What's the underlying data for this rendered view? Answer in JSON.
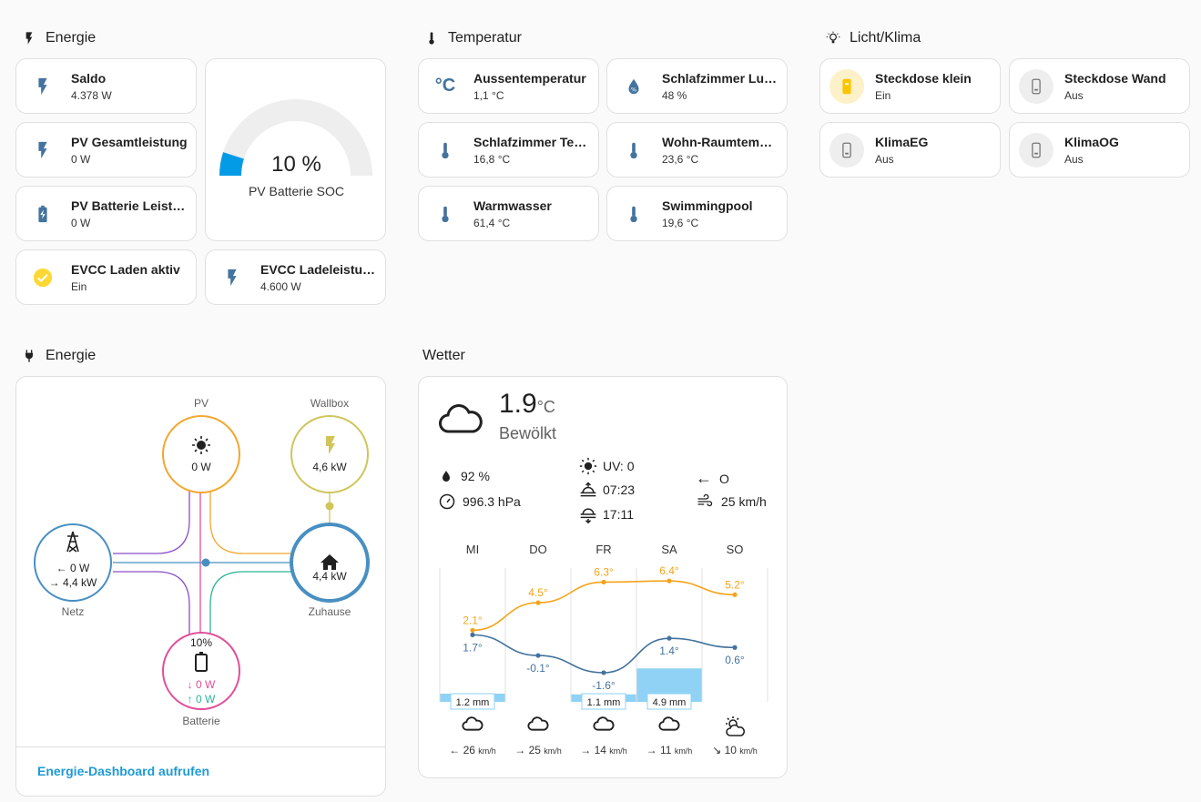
{
  "energy_section": {
    "title": "Energie",
    "tiles": [
      {
        "name": "Saldo",
        "state": "4.378 W"
      },
      {
        "name": "PV Gesamtleistung",
        "state": "0 W"
      },
      {
        "name": "PV Batterie Leistung",
        "state": "0 W"
      },
      {
        "name": "EVCC Laden aktiv",
        "state": "Ein"
      },
      {
        "name": "EVCC Ladeleistung",
        "state": "4.600 W"
      }
    ],
    "gauge": {
      "value": "10 %",
      "label": "PV Batterie SOC",
      "level": 0.1
    }
  },
  "temp_section": {
    "title": "Temperatur",
    "tiles": [
      {
        "name": "Aussentemperatur",
        "state": "1,1 °C"
      },
      {
        "name": "Schlafzimmer Luftfeuchtigkeit",
        "state": "48 %"
      },
      {
        "name": "Schlafzimmer Temperatur",
        "state": "16,8 °C"
      },
      {
        "name": "Wohn-Raumtemperatur",
        "state": "23,6 °C"
      },
      {
        "name": "Warmwasser",
        "state": "61,4 °C"
      },
      {
        "name": "Swimmingpool",
        "state": "19,6 °C"
      }
    ]
  },
  "licht_section": {
    "title": "Licht/Klima",
    "tiles": [
      {
        "name": "Steckdose klein",
        "state": "Ein"
      },
      {
        "name": "Steckdose Wand",
        "state": "Aus"
      },
      {
        "name": "KlimaEG",
        "state": "Aus"
      },
      {
        "name": "KlimaOG",
        "state": "Aus"
      }
    ]
  },
  "flow_section": {
    "title": "Energie",
    "pv": {
      "label": "PV",
      "value": "0 W"
    },
    "wallbox": {
      "label": "Wallbox",
      "value": "4,6 kW"
    },
    "grid": {
      "label": "Netz",
      "in": "0 W",
      "out": "4,4 kW"
    },
    "home": {
      "label": "Zuhause",
      "value": "4,4 kW"
    },
    "battery": {
      "label": "Batterie",
      "soc": "10%",
      "out": "0 W",
      "in": "0 W"
    },
    "link": "Energie-Dashboard aufrufen"
  },
  "weather_section": {
    "title": "Wetter",
    "temp": "1.9",
    "unit": "°C",
    "condition": "Bewölkt",
    "humidity": "92 %",
    "pressure": "996.3 hPa",
    "uv": "UV: 0",
    "sunrise": "07:23",
    "sunset": "17:11",
    "wind_dir": "O",
    "wind_speed": "25 km/h",
    "forecast": [
      {
        "day": "MI",
        "high": 2.1,
        "low": 1.7,
        "high_label": "2.1°",
        "low_label": "1.7°",
        "precip": 1.2,
        "precip_label": "1.2 mm",
        "wind": "26",
        "wind_unit": "km/h",
        "icon": "cloud-icon"
      },
      {
        "day": "DO",
        "high": 4.5,
        "low": -0.1,
        "high_label": "4.5°",
        "low_label": "-0.1°",
        "precip": 0,
        "precip_label": "",
        "wind": "25",
        "wind_unit": "km/h",
        "icon": "cloud-icon"
      },
      {
        "day": "FR",
        "high": 6.3,
        "low": -1.6,
        "high_label": "6.3°",
        "low_label": "-1.6°",
        "precip": 1.1,
        "precip_label": "1.1 mm",
        "wind": "14",
        "wind_unit": "km/h",
        "icon": "cloud-icon"
      },
      {
        "day": "SA",
        "high": 6.4,
        "low": 1.4,
        "high_label": "6.4°",
        "low_label": "1.4°",
        "precip": 4.9,
        "precip_label": "4.9 mm",
        "wind": "11",
        "wind_unit": "km/h",
        "icon": "cloud-icon"
      },
      {
        "day": "SO",
        "high": 5.2,
        "low": 0.6,
        "high_label": "5.2°",
        "low_label": "0.6°",
        "precip": 0,
        "precip_label": "",
        "wind": "10",
        "wind_unit": "km/h",
        "icon": "partly-cloudy-icon"
      }
    ]
  },
  "colors": {
    "accent_blue": "#44739e",
    "solar": "#ff9800",
    "wallbox": "#cfc55a",
    "grid": "#488fc2",
    "battery": "#e04f9a",
    "battery_in": "#2bb39b",
    "home": "#488fc2",
    "gauge": "#039be5",
    "check": "#fdd835",
    "high": "#f5a31a",
    "low": "#44739e",
    "precip": "#8fd2f6",
    "link": "#1e9ad6"
  }
}
